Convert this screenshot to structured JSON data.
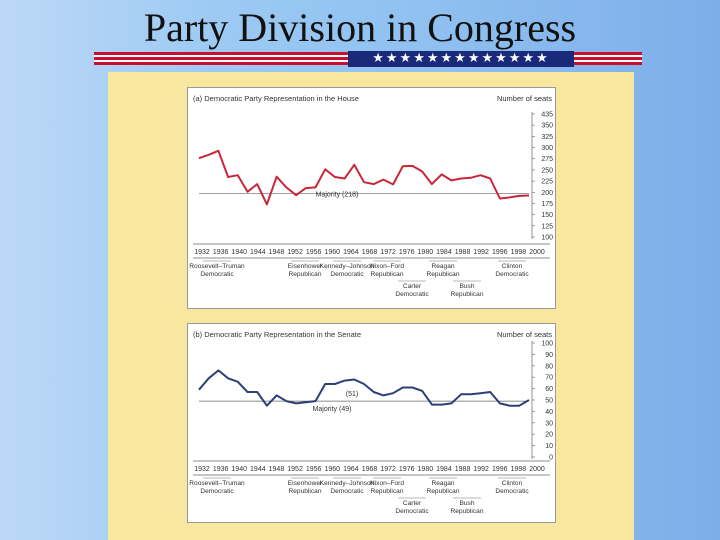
{
  "slide": {
    "title": "Party Division in Congress",
    "stars": "★★★★★★★★★★★★★"
  },
  "colors": {
    "house_line": "#c8273a",
    "senate_line": "#2c3f78",
    "panel_bg": "#f8e79e"
  },
  "chart_data": [
    {
      "type": "line",
      "title": "(a) Democratic Party Representation in the House",
      "ylabel": "Number of seats",
      "ylim": [
        100,
        435
      ],
      "yticks": [
        "435",
        "350",
        "325",
        "300",
        "275",
        "250",
        "225",
        "200",
        "175",
        "150",
        "125",
        "100"
      ],
      "xticks": [
        "1932",
        "1936",
        "1940",
        "1944",
        "1948",
        "1952",
        "1956",
        "1960",
        "1964",
        "1968",
        "1972",
        "1976",
        "1980",
        "1984",
        "1988",
        "1992",
        "1996",
        "1998",
        "2000"
      ],
      "majority": 218,
      "majority_label": "Majority (218)",
      "series": [
        {
          "x": [
            1932,
            1934,
            1936,
            1938,
            1940,
            1942,
            1944,
            1946,
            1948,
            1950,
            1952,
            1954,
            1956,
            1958,
            1960,
            1962,
            1964,
            1966,
            1968,
            1970,
            1972,
            1974,
            1976,
            1978,
            1980,
            1982,
            1984,
            1986,
            1988,
            1990,
            1992,
            1994,
            1996,
            1998,
            2000
          ],
          "values": [
            313,
            322,
            333,
            262,
            267,
            222,
            243,
            188,
            263,
            234,
            213,
            232,
            234,
            283,
            262,
            258,
            295,
            248,
            243,
            255,
            242,
            291,
            292,
            277,
            243,
            269,
            253,
            258,
            260,
            267,
            258,
            204,
            207,
            211,
            212
          ]
        }
      ],
      "eras": [
        {
          "label": "Roosevelt–Truman",
          "party": "Democratic"
        },
        {
          "label": "Eisenhower",
          "party": "Republican"
        },
        {
          "label": "Kennedy–Johnson",
          "party": "Democratic"
        },
        {
          "label": "Nixon–Ford",
          "party": "Republican"
        },
        {
          "label": "Carter",
          "party": "Democratic"
        },
        {
          "label": "Reagan",
          "party": "Republican"
        },
        {
          "label": "Bush",
          "party": "Republican"
        },
        {
          "label": "Clinton",
          "party": "Democratic"
        }
      ]
    },
    {
      "type": "line",
      "title": "(b) Democratic Party Representation in the Senate",
      "ylabel": "Number of seats",
      "ylim": [
        0,
        100
      ],
      "yticks": [
        "100",
        "90",
        "80",
        "70",
        "60",
        "50",
        "40",
        "30",
        "20",
        "10",
        "0"
      ],
      "xticks": [
        "1932",
        "1936",
        "1940",
        "1944",
        "1948",
        "1952",
        "1956",
        "1960",
        "1964",
        "1968",
        "1972",
        "1976",
        "1980",
        "1984",
        "1988",
        "1992",
        "1996",
        "1998",
        "2000"
      ],
      "majority": 49,
      "majority_label": "Majority (49)",
      "threshold": 51,
      "threshold_label": "(51)",
      "series": [
        {
          "x": [
            1932,
            1934,
            1936,
            1938,
            1940,
            1942,
            1944,
            1946,
            1948,
            1950,
            1952,
            1954,
            1956,
            1958,
            1960,
            1962,
            1964,
            1966,
            1968,
            1970,
            1972,
            1974,
            1976,
            1978,
            1980,
            1982,
            1984,
            1986,
            1988,
            1990,
            1992,
            1994,
            1996,
            1998,
            2000
          ],
          "values": [
            59,
            69,
            76,
            69,
            66,
            57,
            57,
            45,
            54,
            49,
            47,
            48,
            49,
            64,
            64,
            67,
            68,
            64,
            57,
            54,
            56,
            61,
            61,
            58,
            46,
            46,
            47,
            55,
            55,
            56,
            57,
            47,
            45,
            45,
            50
          ]
        }
      ],
      "eras": [
        {
          "label": "Roosevelt–Truman",
          "party": "Democratic"
        },
        {
          "label": "Eisenhower",
          "party": "Republican"
        },
        {
          "label": "Kennedy–Johnson",
          "party": "Democratic"
        },
        {
          "label": "Nixon–Ford",
          "party": "Republican"
        },
        {
          "label": "Carter",
          "party": "Democratic"
        },
        {
          "label": "Reagan",
          "party": "Republican"
        },
        {
          "label": "Bush",
          "party": "Republican"
        },
        {
          "label": "Clinton",
          "party": "Democratic"
        }
      ]
    }
  ]
}
